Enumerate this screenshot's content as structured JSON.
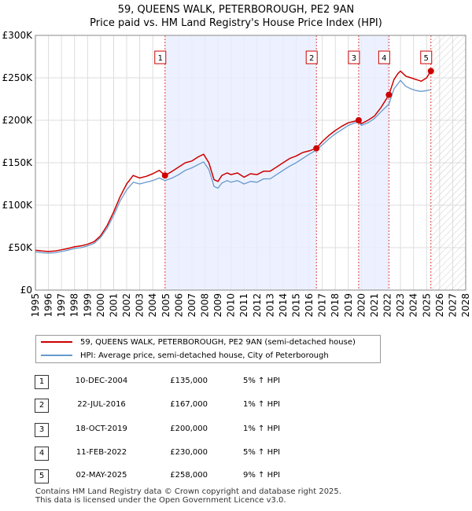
{
  "chart_data": {
    "type": "line",
    "title": "59, QUEENS WALK, PETERBOROUGH, PE2 9AN",
    "subtitle": "Price paid vs. HM Land Registry's House Price Index (HPI)",
    "xlim": [
      1995,
      2028
    ],
    "ylim": [
      0,
      300000
    ],
    "y_ticks": [
      0,
      50000,
      100000,
      150000,
      200000,
      250000,
      300000
    ],
    "y_tick_labels": [
      "£0",
      "£50K",
      "£100K",
      "£150K",
      "£200K",
      "£250K",
      "£300K"
    ],
    "x_ticks": [
      1995,
      1996,
      1997,
      1998,
      1999,
      2000,
      2001,
      2002,
      2003,
      2004,
      2005,
      2006,
      2007,
      2008,
      2009,
      2010,
      2011,
      2012,
      2013,
      2014,
      2015,
      2016,
      2017,
      2018,
      2019,
      2020,
      2021,
      2022,
      2023,
      2024,
      2025,
      2026,
      2027,
      2028
    ],
    "forecast_start": 2025.33,
    "shaded_periods": [
      [
        2004.94,
        2016.55
      ],
      [
        2019.79,
        2022.11
      ]
    ],
    "series": [
      {
        "name": "59, QUEENS WALK, PETERBOROUGH, PE2 9AN (semi-detached house)",
        "color": "#cc0000",
        "x": [
          1995.0,
          1995.5,
          1996.0,
          1996.5,
          1997.0,
          1997.5,
          1998.0,
          1998.5,
          1999.0,
          1999.5,
          2000.0,
          2000.5,
          2001.0,
          2001.5,
          2002.0,
          2002.5,
          2003.0,
          2003.5,
          2004.0,
          2004.5,
          2004.94,
          2005.5,
          2006.0,
          2006.5,
          2007.0,
          2007.5,
          2007.9,
          2008.3,
          2008.7,
          2009.0,
          2009.3,
          2009.7,
          2010.0,
          2010.5,
          2011.0,
          2011.5,
          2012.0,
          2012.5,
          2013.0,
          2013.5,
          2014.0,
          2014.5,
          2015.0,
          2015.5,
          2016.0,
          2016.55,
          2017.0,
          2017.5,
          2018.0,
          2018.5,
          2019.0,
          2019.5,
          2019.79,
          2020.0,
          2020.5,
          2021.0,
          2021.5,
          2022.11,
          2022.5,
          2022.8,
          2023.0,
          2023.4,
          2023.8,
          2024.2,
          2024.6,
          2025.0,
          2025.33
        ],
        "values": [
          47000,
          46000,
          45500,
          46000,
          47500,
          49000,
          51000,
          52000,
          54000,
          57000,
          64000,
          76000,
          92000,
          110000,
          125000,
          135000,
          132000,
          134000,
          137000,
          141000,
          135000,
          140000,
          145000,
          150000,
          152000,
          157000,
          160000,
          150000,
          130000,
          128000,
          135000,
          138000,
          136000,
          138000,
          133000,
          137000,
          136000,
          140000,
          140000,
          145000,
          150000,
          155000,
          158000,
          162000,
          164000,
          167000,
          175000,
          182000,
          188000,
          193000,
          197000,
          199000,
          200000,
          196000,
          200000,
          205000,
          215000,
          230000,
          248000,
          255000,
          258000,
          252000,
          250000,
          248000,
          246000,
          250000,
          258000
        ]
      },
      {
        "name": "HPI: Average price, semi-detached house, City of Peterborough",
        "color": "#6699cc",
        "x": [
          1995.0,
          1995.5,
          1996.0,
          1996.5,
          1997.0,
          1997.5,
          1998.0,
          1998.5,
          1999.0,
          1999.5,
          2000.0,
          2000.5,
          2001.0,
          2001.5,
          2002.0,
          2002.5,
          2003.0,
          2003.5,
          2004.0,
          2004.5,
          2004.94,
          2005.5,
          2006.0,
          2006.5,
          2007.0,
          2007.5,
          2007.9,
          2008.3,
          2008.7,
          2009.0,
          2009.3,
          2009.7,
          2010.0,
          2010.5,
          2011.0,
          2011.5,
          2012.0,
          2012.5,
          2013.0,
          2013.5,
          2014.0,
          2014.5,
          2015.0,
          2015.5,
          2016.0,
          2016.55,
          2017.0,
          2017.5,
          2018.0,
          2018.5,
          2019.0,
          2019.5,
          2019.79,
          2020.0,
          2020.5,
          2021.0,
          2021.5,
          2022.11,
          2022.5,
          2022.8,
          2023.0,
          2023.4,
          2023.8,
          2024.2,
          2024.6,
          2025.0,
          2025.33
        ],
        "values": [
          45000,
          44000,
          43500,
          44000,
          45500,
          47000,
          49000,
          50000,
          52000,
          55000,
          62000,
          73000,
          88000,
          105000,
          118000,
          127000,
          125000,
          127000,
          129000,
          132000,
          129000,
          132000,
          136000,
          141000,
          144000,
          148000,
          151000,
          142000,
          122000,
          120000,
          126000,
          129000,
          127000,
          129000,
          125000,
          128000,
          127000,
          131000,
          131000,
          136000,
          141000,
          146000,
          150000,
          155000,
          160000,
          165000,
          171000,
          178000,
          184000,
          189000,
          194000,
          197000,
          198000,
          194000,
          197000,
          202000,
          210000,
          219000,
          237000,
          243000,
          247000,
          240000,
          237000,
          235000,
          234000,
          235000,
          236000
        ]
      }
    ],
    "sales": [
      {
        "num": "1",
        "x": 2004.94,
        "value": 135000
      },
      {
        "num": "2",
        "x": 2016.55,
        "value": 167000
      },
      {
        "num": "3",
        "x": 2019.79,
        "value": 200000
      },
      {
        "num": "4",
        "x": 2022.11,
        "value": 230000
      },
      {
        "num": "5",
        "x": 2025.33,
        "value": 258000
      }
    ]
  },
  "legend": {
    "property": "59, QUEENS WALK, PETERBOROUGH, PE2 9AN (semi-detached house)",
    "hpi": "HPI: Average price, semi-detached house, City of Peterborough"
  },
  "transactions": [
    {
      "num": "1",
      "date": "10-DEC-2004",
      "price": "£135,000",
      "hpi": "5% ↑ HPI"
    },
    {
      "num": "2",
      "date": "22-JUL-2016",
      "price": "£167,000",
      "hpi": "1% ↑ HPI"
    },
    {
      "num": "3",
      "date": "18-OCT-2019",
      "price": "£200,000",
      "hpi": "1% ↑ HPI"
    },
    {
      "num": "4",
      "date": "11-FEB-2022",
      "price": "£230,000",
      "hpi": "5% ↑ HPI"
    },
    {
      "num": "5",
      "date": "02-MAY-2025",
      "price": "£258,000",
      "hpi": "9% ↑ HPI"
    }
  ],
  "footer": {
    "line1": "Contains HM Land Registry data © Crown copyright and database right 2025.",
    "line2": "This data is licensed under the Open Government Licence v3.0."
  },
  "colors": {
    "property": "#cc0000",
    "hpi": "#6699cc",
    "shade": "#e8eeff",
    "marker": "#cc0000"
  }
}
